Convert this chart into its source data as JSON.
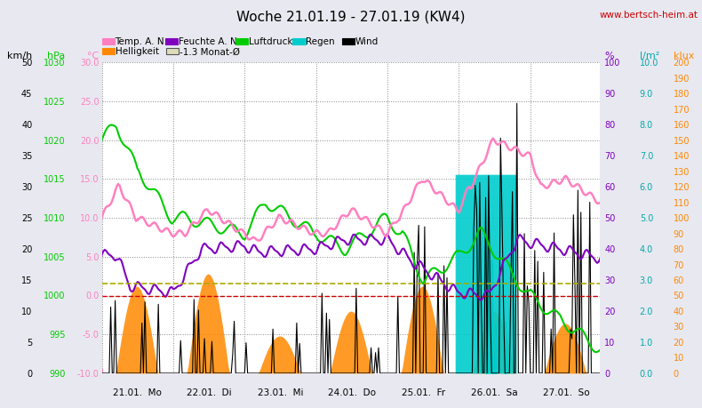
{
  "title": "Woche 21.01.19 - 27.01.19 (KW4)",
  "website": "www.bertsch-heim.at",
  "background_color": "#e8e8f0",
  "plot_bg": "#ffffff",
  "grid_color": "#aaaaaa",
  "celsius_min": -10.0,
  "celsius_max": 30.0,
  "hpa_min": 990,
  "hpa_max": 1030,
  "kmh_min": 0,
  "kmh_max": 50,
  "pct_min": 0,
  "pct_max": 100,
  "lm2_min": 0.0,
  "lm2_max": 10.0,
  "klux_min": 0,
  "klux_max": 200,
  "n_points": 336,
  "x_day_centers": [
    24,
    72,
    120,
    168,
    216,
    264,
    312
  ],
  "x_day_labels": [
    "21.01.  Mo",
    "22.01.  Di",
    "23.01.  Mi",
    "24.01.  Do",
    "25.01.  Fr",
    "26.01.  Sa",
    "27.01.  So"
  ],
  "x_dividers": [
    0,
    48,
    96,
    144,
    192,
    240,
    288,
    336
  ],
  "colors": {
    "temp": "#ff80c0",
    "humidity": "#8000c0",
    "pressure": "#00c000",
    "rain": "#00d0d0",
    "wind": "#000000",
    "helligkeit": "#ff8000",
    "ref_red": "#cc0000",
    "ref_gold": "#ccaa00",
    "grid": "#999999"
  }
}
